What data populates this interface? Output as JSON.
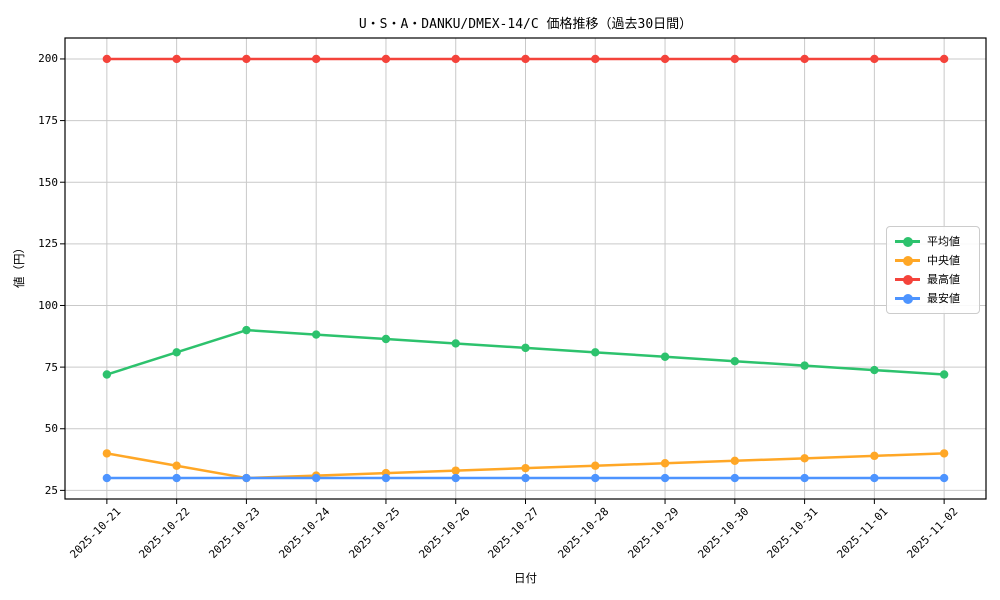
{
  "chart": {
    "title": "U・S・A・DANKU/DMEX-14/C 価格推移（過去30日間）",
    "xlabel": "日付",
    "ylabel": "値（円）"
  },
  "chart_data": {
    "type": "line",
    "title": "U・S・A・DANKU/DMEX-14/C 価格推移（過去30日間）",
    "xlabel": "日付",
    "ylabel": "値（円）",
    "grid": true,
    "legend_position": "center right",
    "categories": [
      "2025-10-21",
      "2025-10-22",
      "2025-10-23",
      "2025-10-24",
      "2025-10-25",
      "2025-10-26",
      "2025-10-27",
      "2025-10-28",
      "2025-10-29",
      "2025-10-30",
      "2025-10-31",
      "2025-11-01",
      "2025-11-02"
    ],
    "yticks": [
      25,
      50,
      75,
      100,
      125,
      150,
      175,
      200
    ],
    "ylim": [
      21.5,
      208.5
    ],
    "series": [
      {
        "key": "average",
        "name": "平均値",
        "color": "#2dc26d",
        "values": [
          72,
          81,
          90,
          88.2,
          86.4,
          84.6,
          82.8,
          81,
          79.2,
          77.4,
          75.6,
          73.8,
          72
        ]
      },
      {
        "key": "median",
        "name": "中央値",
        "color": "#ffa726",
        "values": [
          40,
          35,
          30,
          31,
          32,
          33,
          34,
          35,
          36,
          37,
          38,
          39,
          40
        ]
      },
      {
        "key": "max",
        "name": "最高値",
        "color": "#f4433b",
        "values": [
          200,
          200,
          200,
          200,
          200,
          200,
          200,
          200,
          200,
          200,
          200,
          200,
          200
        ]
      },
      {
        "key": "min",
        "name": "最安値",
        "color": "#4d94ff",
        "values": [
          30,
          30,
          30,
          30,
          30,
          30,
          30,
          30,
          30,
          30,
          30,
          30,
          30
        ]
      }
    ],
    "style": {
      "grid_color": "#c9c9c9",
      "spine_color": "#000000",
      "background": "#ffffff"
    }
  }
}
